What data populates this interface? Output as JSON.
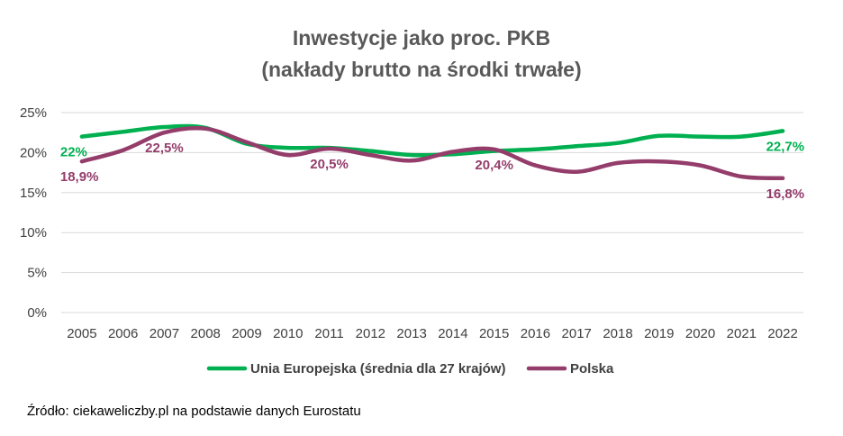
{
  "chart_data": {
    "type": "line",
    "title_lines": [
      "Inwestycje jako proc. PKB",
      "(nakłady brutto na środki trwałe)"
    ],
    "x": [
      "2005",
      "2006",
      "2007",
      "2008",
      "2009",
      "2010",
      "2011",
      "2012",
      "2013",
      "2014",
      "2015",
      "2016",
      "2017",
      "2018",
      "2019",
      "2020",
      "2021",
      "2022"
    ],
    "ylim": [
      0,
      25
    ],
    "yticks": [
      0,
      5,
      10,
      15,
      20,
      25
    ],
    "ytick_labels": [
      "0%",
      "5%",
      "10%",
      "15%",
      "20%",
      "25%"
    ],
    "grid": true,
    "legend_position": "bottom",
    "series": [
      {
        "name": "Unia Europejska (średnia dla 27 krajów)",
        "color": "#00b050",
        "values": [
          22.0,
          22.6,
          23.2,
          23.1,
          21.1,
          20.6,
          20.6,
          20.2,
          19.7,
          19.8,
          20.2,
          20.4,
          20.8,
          21.2,
          22.1,
          22.0,
          22.0,
          22.7
        ]
      },
      {
        "name": "Polska",
        "color": "#943d6b",
        "values": [
          18.9,
          20.3,
          22.5,
          23.0,
          21.3,
          19.7,
          20.5,
          19.7,
          19.0,
          20.1,
          20.4,
          18.4,
          17.6,
          18.7,
          18.9,
          18.4,
          17.0,
          16.8
        ]
      }
    ],
    "data_labels": [
      {
        "series": 0,
        "index": 0,
        "text": "22%",
        "placement": "below-right"
      },
      {
        "series": 0,
        "index": 17,
        "text": "22,7%",
        "placement": "below"
      },
      {
        "series": 1,
        "index": 0,
        "text": "18,9%",
        "placement": "below-right"
      },
      {
        "series": 1,
        "index": 2,
        "text": "22,5%",
        "placement": "below"
      },
      {
        "series": 1,
        "index": 6,
        "text": "20,5%",
        "placement": "below"
      },
      {
        "series": 1,
        "index": 10,
        "text": "20,4%",
        "placement": "below"
      },
      {
        "series": 1,
        "index": 17,
        "text": "16,8%",
        "placement": "below"
      }
    ]
  },
  "source": "Źródło: ciekaweliczby.pl na podstawie danych Eurostatu"
}
